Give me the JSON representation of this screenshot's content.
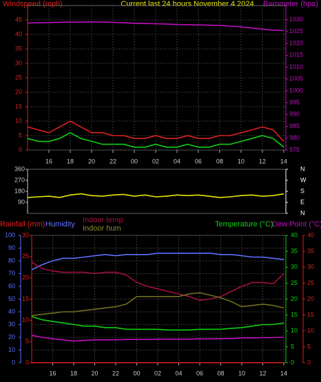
{
  "chart_data": [
    {
      "type": "line",
      "title": "Current last 24 hours November 4 2024",
      "y_label": "Windspeed (mph)",
      "y2_label": "Barometer (hpa)",
      "x": [
        14,
        15,
        16,
        17,
        18,
        19,
        20,
        21,
        22,
        23,
        24,
        25,
        26,
        27,
        28,
        29,
        30,
        31,
        32,
        33,
        34,
        35,
        36,
        37,
        38
      ],
      "xlim": [
        14,
        38.2
      ],
      "xticks": [
        {
          "value": 16,
          "label": "16"
        },
        {
          "value": 18,
          "label": "18"
        },
        {
          "value": 20,
          "label": "20"
        },
        {
          "value": 22,
          "label": "22"
        },
        {
          "value": 24,
          "label": "00"
        },
        {
          "value": 26,
          "label": "02"
        },
        {
          "value": 28,
          "label": "04"
        },
        {
          "value": 30,
          "label": "06"
        },
        {
          "value": 32,
          "label": "08"
        },
        {
          "value": 34,
          "label": "10"
        },
        {
          "value": 36,
          "label": "12"
        },
        {
          "value": 38,
          "label": "14"
        }
      ],
      "ylim": [
        0,
        50
      ],
      "yticks": [
        0,
        5,
        10,
        15,
        20,
        25,
        30,
        35,
        40,
        45
      ],
      "y2lim": [
        975,
        1036
      ],
      "y2ticks": [
        975,
        980,
        985,
        990,
        995,
        1000,
        1005,
        1010,
        1015,
        1020,
        1025,
        1030
      ],
      "grid": true,
      "y_color": "#e02020",
      "y2_color": "#c010c0",
      "series": [
        {
          "color": "#e02020",
          "values": [
            8,
            7,
            6,
            8,
            10,
            8,
            6,
            6,
            5,
            5,
            4,
            4,
            5,
            4,
            4,
            5,
            4,
            4,
            5,
            5,
            6,
            7,
            8,
            7,
            3
          ]
        },
        {
          "color": "#10d010",
          "values": [
            4,
            3,
            3,
            4,
            6,
            4,
            3,
            2,
            2,
            2,
            1,
            1,
            2,
            1,
            1,
            2,
            1,
            1,
            2,
            2,
            3,
            4,
            5,
            4,
            1
          ]
        },
        {
          "color": "#c010c0",
          "axis": "y2",
          "values": [
            1028.6,
            1028.7,
            1028.8,
            1028.9,
            1029,
            1029,
            1029.1,
            1029,
            1028.9,
            1028.7,
            1028.5,
            1028.4,
            1028.3,
            1028.2,
            1028,
            1027.9,
            1027.8,
            1027.7,
            1027.6,
            1027.3,
            1027,
            1026.5,
            1026,
            1025.6,
            1025.4
          ]
        }
      ]
    },
    {
      "type": "line",
      "x": [
        14,
        15,
        16,
        17,
        18,
        19,
        20,
        21,
        22,
        23,
        24,
        25,
        26,
        27,
        28,
        29,
        30,
        31,
        32,
        33,
        34,
        35,
        36,
        37,
        38
      ],
      "xlim": [
        14,
        38.2
      ],
      "ylim": [
        0,
        360
      ],
      "yticks": [
        90,
        180,
        270,
        360
      ],
      "y2lim": [
        0,
        360
      ],
      "y2ticks": [
        {
          "value": 360,
          "label": "N"
        },
        {
          "value": 270,
          "label": "W"
        },
        {
          "value": 180,
          "label": "S"
        },
        {
          "value": 90,
          "label": "E"
        },
        {
          "value": 0,
          "label": "N"
        }
      ],
      "y_color": "#c8c8c8",
      "y2_color": "#ffffff",
      "series": [
        {
          "color": "#e8e800",
          "values": [
            130,
            135,
            140,
            130,
            150,
            160,
            145,
            140,
            150,
            155,
            140,
            150,
            135,
            140,
            150,
            145,
            150,
            140,
            130,
            135,
            145,
            150,
            140,
            145,
            160
          ]
        }
      ]
    },
    {
      "type": "line",
      "x": [
        14,
        15,
        16,
        17,
        18,
        19,
        20,
        21,
        22,
        23,
        24,
        25,
        26,
        27,
        28,
        29,
        30,
        31,
        32,
        33,
        34,
        35,
        36,
        37,
        38
      ],
      "xlim": [
        14,
        38.2
      ],
      "xticks": [
        {
          "value": 16,
          "label": "16"
        },
        {
          "value": 18,
          "label": "18"
        },
        {
          "value": 20,
          "label": "20"
        },
        {
          "value": 22,
          "label": "22"
        },
        {
          "value": 24,
          "label": "00"
        },
        {
          "value": 26,
          "label": "02"
        },
        {
          "value": 28,
          "label": "04"
        },
        {
          "value": 30,
          "label": "06"
        },
        {
          "value": 32,
          "label": "08"
        },
        {
          "value": 34,
          "label": "10"
        },
        {
          "value": 36,
          "label": "12"
        },
        {
          "value": 38,
          "label": "14"
        }
      ],
      "grid": true,
      "axes": {
        "humidity": {
          "label": "Humidity",
          "color": "#6070ff",
          "lim": [
            0,
            100
          ],
          "ticks": [
            0,
            10,
            20,
            30,
            40,
            50,
            60,
            70,
            80,
            90,
            100
          ]
        },
        "rain": {
          "label": "Rainfall (mm)",
          "color": "#e02020",
          "lim": [
            0,
            30
          ],
          "ticks": [
            0,
            5,
            10,
            15,
            20,
            25,
            30
          ]
        },
        "temp": {
          "label": "Temperature (°C)",
          "color": "#10d010",
          "lim": [
            0,
            40
          ],
          "ticks": [
            0,
            5,
            10,
            15,
            20,
            25,
            30,
            35,
            40
          ]
        },
        "dew": {
          "label": "Dew Point (°C)",
          "color": "#e02020",
          "lim": [
            0,
            40
          ],
          "ticks": [
            0,
            5,
            10,
            15,
            20,
            25,
            30,
            35,
            40
          ]
        }
      },
      "series": [
        {
          "axis": "rain",
          "color": "#e02020",
          "values": [
            0,
            0,
            0,
            0,
            0,
            0,
            0,
            0,
            0,
            0,
            0,
            0,
            0,
            0,
            0,
            0,
            0,
            0,
            0,
            0,
            0,
            0,
            0,
            0,
            0
          ]
        },
        {
          "axis": "humidity",
          "color": "#6070ff",
          "values": [
            73,
            77,
            80,
            82,
            82,
            83,
            84,
            85,
            84,
            85,
            85,
            85,
            86,
            86,
            86,
            86,
            86,
            86,
            85,
            85,
            84,
            83,
            83,
            82,
            81
          ]
        },
        {
          "axis": "humidity",
          "name": "Indoor temp",
          "color": "#a01040",
          "values": [
            79,
            74,
            72,
            71,
            71,
            71,
            70,
            71,
            71,
            69,
            63,
            60,
            58,
            56,
            54,
            52,
            49,
            50,
            52,
            56,
            60,
            63,
            63,
            62,
            70
          ]
        },
        {
          "axis": "humidity",
          "name": "Indoor hum",
          "color": "#707020",
          "values": [
            37,
            38,
            39,
            40,
            40,
            41,
            42,
            43,
            44,
            46,
            52,
            52,
            52,
            52,
            52,
            54,
            55,
            53,
            51,
            48,
            44,
            45,
            46,
            45,
            43
          ]
        },
        {
          "axis": "temp",
          "color": "#10d010",
          "values": [
            14.5,
            13.5,
            13,
            12.5,
            12,
            11.5,
            11.5,
            11,
            11,
            10.5,
            10.5,
            10.5,
            10.5,
            10.3,
            10.3,
            10.3,
            10.5,
            10.5,
            10.5,
            10.8,
            11,
            11.5,
            12,
            12,
            12.5
          ]
        },
        {
          "axis": "dew",
          "color": "#c010c0",
          "values": [
            8.6,
            8,
            7.5,
            7.2,
            6.8,
            7,
            7.2,
            7.2,
            7.2,
            7.3,
            7.3,
            7.3,
            7.4,
            7.4,
            7.4,
            7.4,
            7.5,
            7.5,
            7.6,
            7.6,
            7.8,
            7.8,
            7.9,
            7.9,
            8
          ]
        }
      ]
    }
  ]
}
